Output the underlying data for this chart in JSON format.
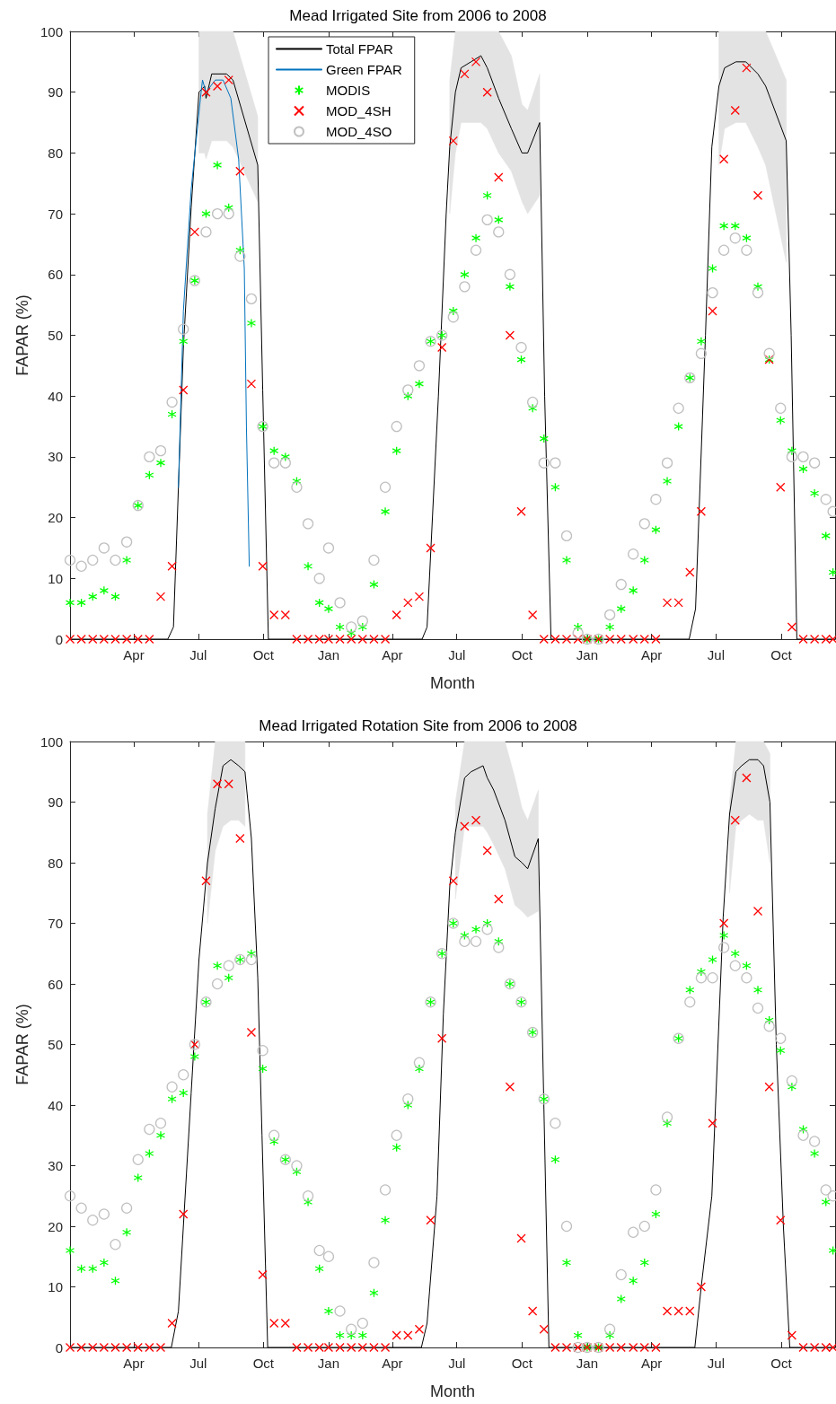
{
  "chart_data": [
    {
      "type": "scatter",
      "title": "Mead Irrigated Site from 2006 to 2008",
      "xlabel": "Month",
      "ylabel": "FAPAR (%)",
      "xlim": [
        "2006-01-01",
        "2008-12-16"
      ],
      "ylim": [
        0,
        100
      ],
      "yticks": [
        0,
        10,
        20,
        30,
        40,
        50,
        60,
        70,
        80,
        90,
        100
      ],
      "xticks": [
        {
          "value": "2006-04-01",
          "label": "Apr"
        },
        {
          "value": "2006-07-01",
          "label": "Jul"
        },
        {
          "value": "2006-10-01",
          "label": "Oct"
        },
        {
          "value": "2007-01-01",
          "label": "Jan"
        },
        {
          "value": "2007-04-01",
          "label": "Apr"
        },
        {
          "value": "2007-07-01",
          "label": "Jul"
        },
        {
          "value": "2007-10-01",
          "label": "Oct"
        },
        {
          "value": "2008-01-01",
          "label": "Jan"
        },
        {
          "value": "2008-04-01",
          "label": "Apr"
        },
        {
          "value": "2008-07-01",
          "label": "Jul"
        },
        {
          "value": "2008-10-01",
          "label": "Oct"
        }
      ],
      "legend": "top left",
      "x": [
        "2006-01-01",
        "2006-01-17",
        "2006-02-02",
        "2006-02-18",
        "2006-03-06",
        "2006-03-22",
        "2006-04-07",
        "2006-04-23",
        "2006-05-09",
        "2006-05-25",
        "2006-06-10",
        "2006-06-26",
        "2006-07-12",
        "2006-07-28",
        "2006-08-13",
        "2006-08-29",
        "2006-09-14",
        "2006-09-30",
        "2006-10-16",
        "2006-11-01",
        "2006-11-17",
        "2006-12-03",
        "2006-12-19",
        "2007-01-01",
        "2007-01-17",
        "2007-02-02",
        "2007-02-18",
        "2007-03-06",
        "2007-03-22",
        "2007-04-07",
        "2007-04-23",
        "2007-05-09",
        "2007-05-25",
        "2007-06-10",
        "2007-06-26",
        "2007-07-12",
        "2007-07-28",
        "2007-08-13",
        "2007-08-29",
        "2007-09-14",
        "2007-09-30",
        "2007-10-16",
        "2007-11-01",
        "2007-11-17",
        "2007-12-03",
        "2007-12-19",
        "2008-01-01",
        "2008-01-17",
        "2008-02-02",
        "2008-02-18",
        "2008-03-06",
        "2008-03-22",
        "2008-04-07",
        "2008-04-23",
        "2008-05-09",
        "2008-05-25",
        "2008-06-10",
        "2008-06-26",
        "2008-07-12",
        "2008-07-28",
        "2008-08-13",
        "2008-08-29",
        "2008-09-14",
        "2008-09-30",
        "2008-10-16",
        "2008-11-01",
        "2008-11-17",
        "2008-12-03",
        "2008-12-13"
      ],
      "series": [
        {
          "name": "Total FPAR",
          "type": "line",
          "color": "#000000",
          "marker": "none",
          "line_style": "solid",
          "x": [
            "2006-01-01",
            "2006-05-19",
            "2006-05-27",
            "2006-06-10",
            "2006-06-21",
            "2006-07-02",
            "2006-07-10",
            "2006-07-12",
            "2006-07-20",
            "2006-08-10",
            "2006-08-19",
            "2006-09-23",
            "2006-09-30",
            "2006-10-08",
            "2007-05-13",
            "2007-05-20",
            "2007-06-05",
            "2007-06-16",
            "2007-06-21",
            "2007-06-29",
            "2007-07-07",
            "2007-07-21",
            "2007-08-04",
            "2007-08-13",
            "2007-08-29",
            "2007-09-16",
            "2007-10-01",
            "2007-10-09",
            "2007-10-26",
            "2007-11-02",
            "2007-11-11",
            "2008-05-24",
            "2008-06-02",
            "2008-06-16",
            "2008-06-25",
            "2008-07-05",
            "2008-07-13",
            "2008-07-29",
            "2008-08-12",
            "2008-08-29",
            "2008-09-09",
            "2008-10-08",
            "2008-10-15",
            "2008-10-23",
            "2008-12-16"
          ],
          "values": [
            0,
            0,
            2,
            48,
            71,
            90,
            91,
            89,
            93,
            93,
            92,
            78,
            41,
            0,
            0,
            2,
            40,
            70,
            81,
            90,
            94,
            95,
            96,
            94,
            89,
            84,
            80,
            80,
            85,
            40,
            0,
            0,
            5,
            50,
            81,
            91,
            94,
            95,
            95,
            93,
            91,
            82,
            50,
            0,
            0
          ],
          "lower": [
            null,
            null,
            null,
            null,
            null,
            80,
            80,
            79,
            82,
            82,
            81,
            72,
            null,
            null,
            null,
            null,
            null,
            null,
            70,
            80,
            85,
            85,
            85,
            84,
            80,
            77,
            72,
            70,
            73,
            null,
            null,
            null,
            null,
            null,
            null,
            78,
            84,
            85,
            85,
            81,
            78,
            62,
            null,
            null,
            null
          ],
          "upper": [
            null,
            null,
            null,
            null,
            null,
            100,
            100,
            100,
            100,
            100,
            100,
            86,
            null,
            null,
            null,
            null,
            null,
            null,
            92,
            100,
            100,
            100,
            100,
            100,
            100,
            96,
            88,
            87,
            93,
            null,
            null,
            null,
            null,
            null,
            null,
            100,
            100,
            100,
            100,
            100,
            100,
            92,
            null,
            null,
            null
          ]
        },
        {
          "name": "Green FPAR",
          "type": "line",
          "color": "#0072bd",
          "marker": "none",
          "line_style": "solid",
          "x": [
            "2006-06-03",
            "2006-06-10",
            "2006-06-21",
            "2006-07-05",
            "2006-07-07",
            "2006-07-12",
            "2006-07-25",
            "2006-08-05",
            "2006-08-16",
            "2006-08-27",
            "2006-09-04",
            "2006-09-07",
            "2006-09-11"
          ],
          "values": [
            25,
            54,
            74,
            90,
            92,
            90,
            92,
            92,
            89,
            79,
            61,
            35,
            12
          ]
        },
        {
          "name": "MODIS",
          "color": "#00ff00",
          "values": [
            6,
            6,
            7,
            8,
            7,
            13,
            22,
            27,
            29,
            37,
            49,
            59,
            70,
            78,
            71,
            64,
            52,
            35,
            31,
            30,
            26,
            12,
            6,
            5,
            2,
            1,
            2,
            9,
            21,
            31,
            40,
            42,
            49,
            50,
            54,
            60,
            66,
            73,
            69,
            58,
            46,
            38,
            33,
            25,
            13,
            2,
            0,
            0,
            2,
            5,
            8,
            13,
            18,
            26,
            35,
            43,
            49,
            61,
            68,
            68,
            66,
            58,
            46,
            36,
            31,
            28,
            24,
            17,
            11
          ]
        },
        {
          "name": "MOD_4SH",
          "color": "#ff0000",
          "marker": "cross",
          "values": [
            0,
            0,
            0,
            0,
            0,
            0,
            0,
            0,
            7,
            12,
            41,
            67,
            90,
            91,
            92,
            77,
            42,
            12,
            4,
            4,
            0,
            0,
            0,
            0,
            0,
            0,
            0,
            0,
            0,
            4,
            6,
            7,
            15,
            48,
            82,
            93,
            95,
            90,
            76,
            50,
            21,
            4,
            0,
            0,
            0,
            0,
            0,
            0,
            0,
            0,
            0,
            0,
            0,
            6,
            6,
            11,
            21,
            54,
            79,
            87,
            94,
            73,
            46,
            25,
            2,
            0,
            0,
            0,
            0
          ]
        },
        {
          "name": "MOD_4SO",
          "color": "#c0c0c0",
          "marker": "circle",
          "values": [
            13,
            12,
            13,
            15,
            13,
            16,
            22,
            30,
            31,
            39,
            51,
            59,
            67,
            70,
            70,
            63,
            56,
            35,
            29,
            29,
            25,
            19,
            10,
            15,
            6,
            2,
            3,
            13,
            25,
            35,
            41,
            45,
            49,
            50,
            53,
            58,
            64,
            69,
            67,
            60,
            48,
            39,
            29,
            29,
            17,
            1,
            0,
            0,
            4,
            9,
            14,
            19,
            23,
            29,
            38,
            43,
            47,
            57,
            64,
            66,
            64,
            57,
            47,
            38,
            30,
            30,
            29,
            23,
            21
          ]
        }
      ]
    },
    {
      "type": "scatter",
      "title": "Mead Irrigated Rotation Site from 2006 to 2008",
      "xlabel": "Month",
      "ylabel": "FAPAR (%)",
      "xlim": [
        "2006-01-01",
        "2008-12-16"
      ],
      "ylim": [
        0,
        100
      ],
      "yticks": [
        0,
        10,
        20,
        30,
        40,
        50,
        60,
        70,
        80,
        90,
        100
      ],
      "xticks": [
        {
          "value": "2006-04-01",
          "label": "Apr"
        },
        {
          "value": "2006-07-01",
          "label": "Jul"
        },
        {
          "value": "2006-10-01",
          "label": "Oct"
        },
        {
          "value": "2007-01-01",
          "label": "Jan"
        },
        {
          "value": "2007-04-01",
          "label": "Apr"
        },
        {
          "value": "2007-07-01",
          "label": "Jul"
        },
        {
          "value": "2007-10-01",
          "label": "Oct"
        },
        {
          "value": "2008-01-01",
          "label": "Jan"
        },
        {
          "value": "2008-04-01",
          "label": "Apr"
        },
        {
          "value": "2008-07-01",
          "label": "Jul"
        },
        {
          "value": "2008-10-01",
          "label": "Oct"
        }
      ],
      "x": [
        "2006-01-01",
        "2006-01-17",
        "2006-02-02",
        "2006-02-18",
        "2006-03-06",
        "2006-03-22",
        "2006-04-07",
        "2006-04-23",
        "2006-05-09",
        "2006-05-25",
        "2006-06-10",
        "2006-06-26",
        "2006-07-12",
        "2006-07-28",
        "2006-08-13",
        "2006-08-29",
        "2006-09-14",
        "2006-09-30",
        "2006-10-16",
        "2006-11-01",
        "2006-11-17",
        "2006-12-03",
        "2006-12-19",
        "2007-01-01",
        "2007-01-17",
        "2007-02-02",
        "2007-02-18",
        "2007-03-06",
        "2007-03-22",
        "2007-04-07",
        "2007-04-23",
        "2007-05-09",
        "2007-05-25",
        "2007-06-10",
        "2007-06-26",
        "2007-07-12",
        "2007-07-28",
        "2007-08-13",
        "2007-08-29",
        "2007-09-14",
        "2007-09-30",
        "2007-10-16",
        "2007-11-01",
        "2007-11-17",
        "2007-12-03",
        "2007-12-19",
        "2008-01-01",
        "2008-01-17",
        "2008-02-02",
        "2008-02-18",
        "2008-03-06",
        "2008-03-22",
        "2008-04-07",
        "2008-04-23",
        "2008-05-09",
        "2008-05-25",
        "2008-06-10",
        "2008-06-26",
        "2008-07-12",
        "2008-07-28",
        "2008-08-13",
        "2008-08-29",
        "2008-09-14",
        "2008-09-30",
        "2008-10-16",
        "2008-11-01",
        "2008-11-17",
        "2008-12-03",
        "2008-12-13"
      ],
      "series": [
        {
          "type": "line",
          "color": "#000000",
          "marker": "none",
          "line_style": "solid",
          "x": [
            "2006-01-01",
            "2006-05-24",
            "2006-06-03",
            "2006-06-21",
            "2006-07-02",
            "2006-07-14",
            "2006-07-25",
            "2006-08-05",
            "2006-08-16",
            "2006-08-27",
            "2006-09-05",
            "2006-09-14",
            "2006-09-23",
            "2006-09-29",
            "2006-10-07",
            "2007-05-12",
            "2007-05-20",
            "2007-06-03",
            "2007-06-12",
            "2007-06-21",
            "2007-06-29",
            "2007-07-12",
            "2007-07-21",
            "2007-08-07",
            "2007-08-13",
            "2007-08-22",
            "2007-09-07",
            "2007-09-21",
            "2007-10-01",
            "2007-10-09",
            "2007-10-24",
            "2007-11-08",
            "2008-06-01",
            "2008-06-10",
            "2008-06-25",
            "2008-07-03",
            "2008-07-11",
            "2008-07-20",
            "2008-07-29",
            "2008-08-06",
            "2008-08-17",
            "2008-08-29",
            "2008-09-06",
            "2008-09-15",
            "2008-09-24",
            "2008-10-04",
            "2008-10-13",
            "2008-12-16"
          ],
          "values": [
            0,
            0,
            6,
            42,
            64,
            80,
            89,
            96,
            97,
            96,
            95,
            84,
            61,
            35,
            0,
            0,
            4,
            25,
            55,
            76,
            85,
            94,
            95,
            96,
            94,
            92,
            87,
            81,
            80,
            79,
            84,
            0,
            0,
            10,
            25,
            48,
            71,
            88,
            95,
            96,
            97,
            97,
            96,
            90,
            50,
            20,
            0,
            0
          ],
          "lower": [
            null,
            null,
            null,
            null,
            null,
            70,
            82,
            86,
            87,
            87,
            86,
            null,
            null,
            null,
            null,
            null,
            null,
            null,
            null,
            null,
            74,
            86,
            86,
            86,
            85,
            83,
            79,
            73,
            72,
            71,
            72,
            null,
            null,
            null,
            null,
            null,
            null,
            75,
            86,
            87,
            88,
            87,
            87,
            80,
            null,
            null,
            null,
            null
          ],
          "upper": [
            null,
            null,
            null,
            null,
            null,
            88,
            100,
            100,
            100,
            100,
            100,
            null,
            null,
            null,
            null,
            null,
            null,
            null,
            null,
            null,
            90,
            100,
            100,
            100,
            100,
            100,
            100,
            94,
            89,
            87,
            92,
            null,
            null,
            null,
            null,
            null,
            null,
            90,
            100,
            100,
            100,
            100,
            100,
            98,
            null,
            null,
            null,
            null
          ]
        },
        {
          "color": "#00ff00",
          "values": [
            16,
            13,
            13,
            14,
            11,
            19,
            28,
            32,
            35,
            41,
            42,
            48,
            57,
            63,
            61,
            64,
            65,
            46,
            34,
            31,
            29,
            24,
            13,
            6,
            2,
            2,
            2,
            9,
            21,
            33,
            40,
            46,
            57,
            65,
            70,
            68,
            69,
            70,
            67,
            60,
            57,
            52,
            41,
            31,
            14,
            2,
            0,
            0,
            2,
            8,
            11,
            14,
            22,
            37,
            51,
            59,
            62,
            64,
            68,
            65,
            63,
            59,
            54,
            49,
            43,
            36,
            32,
            24,
            16
          ]
        },
        {
          "color": "#ff0000",
          "marker": "cross",
          "values": [
            0,
            0,
            0,
            0,
            0,
            0,
            0,
            0,
            0,
            4,
            22,
            50,
            77,
            93,
            93,
            84,
            52,
            12,
            4,
            4,
            0,
            0,
            0,
            0,
            0,
            0,
            0,
            0,
            0,
            2,
            2,
            3,
            21,
            51,
            77,
            86,
            87,
            82,
            74,
            43,
            18,
            6,
            3,
            0,
            0,
            0,
            0,
            0,
            0,
            0,
            0,
            0,
            0,
            6,
            6,
            6,
            10,
            37,
            70,
            87,
            94,
            72,
            43,
            21,
            2,
            0,
            0,
            0,
            0
          ]
        },
        {
          "color": "#c0c0c0",
          "marker": "circle",
          "values": [
            25,
            23,
            21,
            22,
            17,
            23,
            31,
            36,
            37,
            43,
            45,
            50,
            57,
            60,
            63,
            64,
            64,
            49,
            35,
            31,
            30,
            25,
            16,
            15,
            6,
            3,
            4,
            14,
            26,
            35,
            41,
            47,
            57,
            65,
            70,
            67,
            67,
            69,
            66,
            60,
            57,
            52,
            41,
            37,
            20,
            0,
            0,
            0,
            3,
            12,
            19,
            20,
            26,
            38,
            51,
            57,
            61,
            61,
            66,
            63,
            61,
            56,
            53,
            51,
            44,
            35,
            34,
            26,
            25
          ]
        }
      ]
    }
  ]
}
